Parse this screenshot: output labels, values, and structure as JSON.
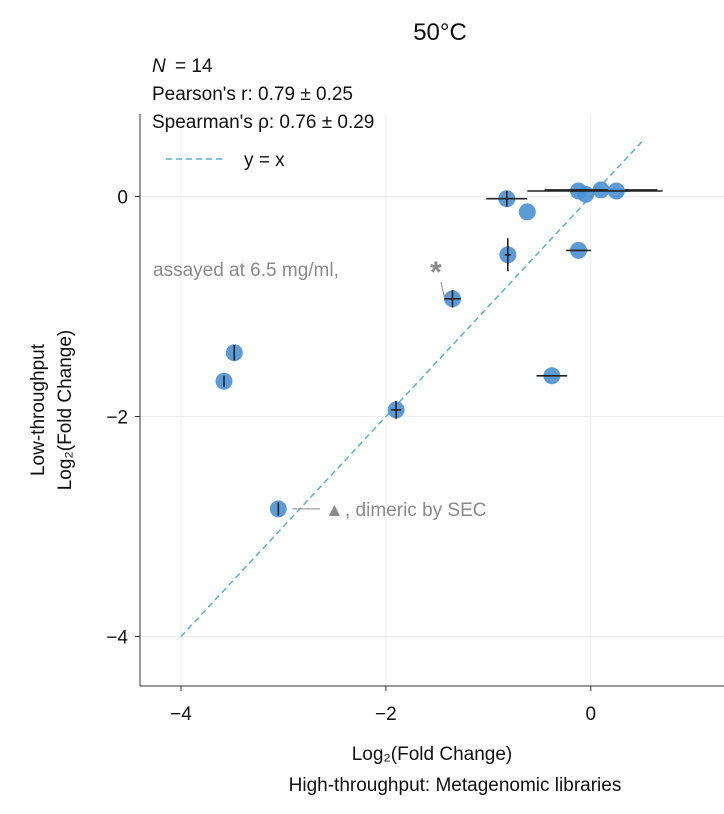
{
  "chart_data": {
    "type": "scatter",
    "title": "50°C",
    "stats": {
      "n_symbol": "N",
      "n_value": "= 14",
      "pearson": "Pearson's r: 0.79 ± 0.25",
      "spearman": "Spearman's ρ: 0.76 ± 0.29"
    },
    "legend": {
      "label": "y = x",
      "position": "top-left"
    },
    "xlabel": "Log₂(Fold Change)",
    "xlabel_sub": "High-throughput: Metagenomic libraries",
    "ylabel_top": "Low-throughput",
    "ylabel_bottom": "Log₂(Fold Change)",
    "xlim": [
      -4.4,
      1.3
    ],
    "ylim": [
      -4.45,
      0.75
    ],
    "xticks": [
      -4,
      -2,
      0
    ],
    "xtick_labels": [
      "−4",
      "−2",
      "0"
    ],
    "yticks": [
      -4,
      -2,
      0
    ],
    "ytick_labels": [
      "−4",
      "−2",
      "0"
    ],
    "grid": true,
    "reference_line": {
      "from": [
        -4,
        -4
      ],
      "to": [
        0.5,
        0.5
      ]
    },
    "points": [
      {
        "x": -3.58,
        "y": -1.68,
        "xerr": 0,
        "yerr": 0.05
      },
      {
        "x": -3.48,
        "y": -1.42,
        "xerr": 0,
        "yerr": 0.07
      },
      {
        "x": -3.05,
        "y": -2.84,
        "xerr": 0,
        "yerr": 0.06
      },
      {
        "x": -1.9,
        "y": -1.94,
        "xerr": 0.05,
        "yerr": 0.08
      },
      {
        "x": -1.35,
        "y": -0.93,
        "xerr": 0.08,
        "yerr": 0.08
      },
      {
        "x": -0.82,
        "y": -0.02,
        "xerr": 0.2,
        "yerr": 0.07
      },
      {
        "x": -0.81,
        "y": -0.53,
        "xerr": 0.03,
        "yerr": 0.15
      },
      {
        "x": -0.62,
        "y": -0.14,
        "xerr": 0,
        "yerr": 0
      },
      {
        "x": -0.38,
        "y": -1.63,
        "xerr": 0.15,
        "yerr": 0
      },
      {
        "x": -0.12,
        "y": -0.49,
        "xerr": 0.12,
        "yerr": 0
      },
      {
        "x": -0.12,
        "y": 0.05,
        "xerr": 0.5,
        "yerr": 0
      },
      {
        "x": -0.05,
        "y": 0.02,
        "xerr": 0,
        "yerr": 0
      },
      {
        "x": 0.1,
        "y": 0.06,
        "xerr": 0.55,
        "yerr": 0
      },
      {
        "x": 0.25,
        "y": 0.05,
        "xerr": 0.45,
        "yerr": 0
      }
    ],
    "annotations": [
      {
        "symbol": "*",
        "text": "assayed at 6.5 mg/ml,",
        "point_index": 4
      },
      {
        "symbol": "▲",
        "text": ", dimeric by SEC",
        "point_index": 2
      }
    ],
    "colors": {
      "point": "#4a90d0",
      "errorbar": "#222222",
      "refline": "#5aaed6",
      "annotation": "#8a8a8a",
      "grid": "#ececec",
      "axis": "#333333"
    }
  }
}
